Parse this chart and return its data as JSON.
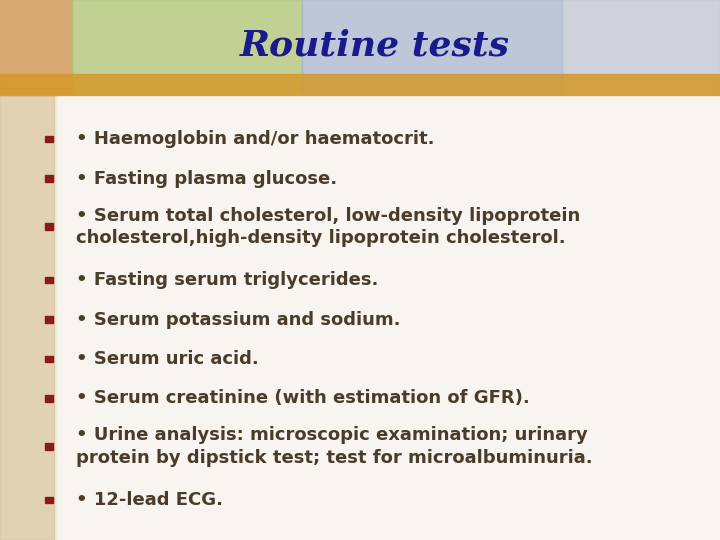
{
  "title": "Routine tests",
  "title_color": "#1a1a8c",
  "title_fontsize": 26,
  "title_fontstyle": "italic",
  "title_fontweight": "bold",
  "items": [
    {
      "text": "• Haemoglobin and/or haematocrit.",
      "lines": 1
    },
    {
      "text": "• Fasting plasma glucose.",
      "lines": 1
    },
    {
      "text": "• Serum total cholesterol, low-density lipoprotein\ncholesterol,high-density lipoprotein cholesterol.",
      "lines": 2
    },
    {
      "text": "• Fasting serum triglycerides.",
      "lines": 1
    },
    {
      "text": "• Serum potassium and sodium.",
      "lines": 1
    },
    {
      "text": "• Serum uric acid.",
      "lines": 1
    },
    {
      "text": "• Serum creatinine (with estimation of GFR).",
      "lines": 1
    },
    {
      "text": "• Urine analysis: microscopic examination; urinary\nprotein by dipstick test; test for microalbuminuria.",
      "lines": 2
    },
    {
      "text": "• 12-lead ECG.",
      "lines": 1
    }
  ],
  "text_color": "#4a3c2a",
  "text_fontsize": 13.0,
  "bullet_color": "#8b1a1a",
  "content_bg": "#f0ede4",
  "header_tan": "#d4a870",
  "header_green": "#b0c878",
  "header_blue": "#a8b8d4",
  "header_right": "#b8c0d4",
  "left_strip_color": "#c8a870",
  "orange_bar_color": "#d4982a",
  "fig_width": 7.2,
  "fig_height": 5.4
}
